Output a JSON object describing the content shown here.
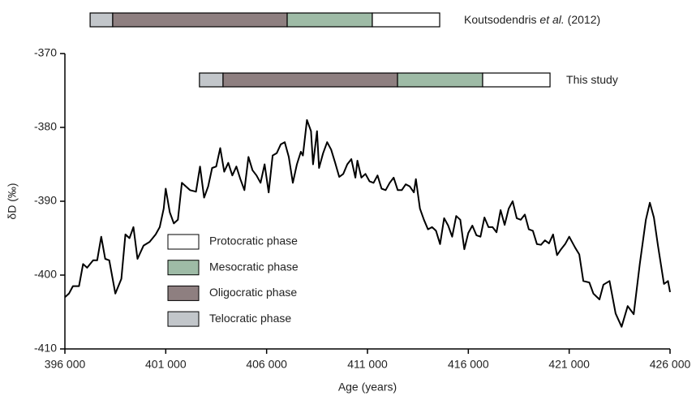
{
  "chart_data": {
    "type": "line",
    "y_label": "δD (‰)",
    "x_label": "Age (years)",
    "xlim": [
      396000,
      426000
    ],
    "xticks": [
      {
        "value": 396000,
        "label": "396 000"
      },
      {
        "value": 401000,
        "label": "401 000"
      },
      {
        "value": 406000,
        "label": "406 000"
      },
      {
        "value": 411000,
        "label": "411 000"
      },
      {
        "value": 416000,
        "label": "416 000"
      },
      {
        "value": 421000,
        "label": "421 000"
      },
      {
        "value": 426000,
        "label": "426 000"
      }
    ],
    "ylim": [
      -410,
      -370
    ],
    "yticks": [
      -410,
      -400,
      -390,
      -380,
      -370
    ],
    "series": [
      {
        "color": "#000000",
        "x": [
          396000,
          396200,
          396400,
          396700,
          396900,
          397100,
          397400,
          397600,
          397800,
          398000,
          398200,
          398500,
          398800,
          399000,
          399200,
          399400,
          399600,
          399900,
          400200,
          400500,
          400700,
          400900,
          401000,
          401200,
          401400,
          401600,
          401800,
          402000,
          402200,
          402500,
          402700,
          402900,
          403100,
          403300,
          403500,
          403700,
          403900,
          404100,
          404300,
          404500,
          404700,
          404900,
          405100,
          405300,
          405500,
          405700,
          405900,
          406100,
          406300,
          406500,
          406700,
          406900,
          407100,
          407300,
          407500,
          407700,
          407800,
          408000,
          408200,
          408300,
          408500,
          408600,
          408800,
          409000,
          409200,
          409400,
          409600,
          409800,
          410000,
          410200,
          410400,
          410500,
          410700,
          410900,
          411100,
          411300,
          411500,
          411700,
          411900,
          412100,
          412300,
          412500,
          412700,
          412900,
          413100,
          413300,
          413400,
          413600,
          413800,
          414000,
          414200,
          414400,
          414600,
          414800,
          415000,
          415200,
          415400,
          415600,
          415800,
          416000,
          416200,
          416400,
          416600,
          416800,
          417000,
          417200,
          417400,
          417600,
          417800,
          418000,
          418200,
          418400,
          418600,
          418800,
          419000,
          419200,
          419400,
          419600,
          419800,
          420000,
          420200,
          420400,
          420600,
          420800,
          421000,
          421300,
          421500,
          421700,
          422000,
          422200,
          422500,
          422700,
          423000,
          423300,
          423600,
          423900,
          424200,
          424500,
          424800,
          425000,
          425200,
          425400,
          425700,
          425900,
          426000
        ],
        "values": [
          -403,
          -402.5,
          -401.5,
          -401.5,
          -398.5,
          -399,
          -398,
          -398,
          -394.8,
          -397.8,
          -398,
          -402.5,
          -400.5,
          -394.5,
          -395,
          -393.5,
          -397.8,
          -396,
          -395.5,
          -394.5,
          -393.5,
          -391,
          -388.3,
          -391.5,
          -393,
          -392.5,
          -387.5,
          -388,
          -388.5,
          -388.7,
          -385.3,
          -389.5,
          -388,
          -385.5,
          -385.3,
          -382.8,
          -386,
          -384.8,
          -386.5,
          -385.3,
          -387,
          -388.5,
          -384,
          -385.8,
          -386.5,
          -387.5,
          -385,
          -388.8,
          -383.8,
          -383.5,
          -382.3,
          -382,
          -384,
          -387.5,
          -385,
          -383.3,
          -383.8,
          -379,
          -380.5,
          -385,
          -380.5,
          -385.5,
          -383.5,
          -382,
          -383,
          -384.8,
          -386.7,
          -386.3,
          -385,
          -384.3,
          -386.8,
          -384.5,
          -386.8,
          -386.3,
          -387.3,
          -387.5,
          -386.5,
          -388.3,
          -388.5,
          -387.5,
          -386.8,
          -388.5,
          -388.5,
          -387.7,
          -388,
          -388.8,
          -387,
          -391,
          -392.5,
          -393.8,
          -393.5,
          -394,
          -395.8,
          -392.3,
          -393.3,
          -394.8,
          -392,
          -392.5,
          -396.5,
          -394.3,
          -393.3,
          -394.6,
          -394.8,
          -392.2,
          -393.5,
          -393.5,
          -394.2,
          -391.2,
          -393.2,
          -391,
          -390,
          -392.3,
          -392.5,
          -391.8,
          -393.8,
          -394,
          -395.8,
          -395.9,
          -395.3,
          -395.7,
          -394.5,
          -397.3,
          -396.5,
          -395.8,
          -394.8,
          -396.3,
          -397.2,
          -400.8,
          -401,
          -402.5,
          -403.3,
          -401.3,
          -400.8,
          -405.2,
          -407,
          -404.2,
          -405.3,
          -398.5,
          -392.5,
          -390.2,
          -392.2,
          -396,
          -401.2,
          -400.8,
          -402.3
        ]
      }
    ],
    "phase_bars": [
      {
        "label": [
          "Koutsodendris ",
          "et al.",
          " (2012)"
        ],
        "bounds": [
          397250,
          398370,
          407020,
          411240,
          414580
        ]
      },
      {
        "label": [
          "This study"
        ],
        "bounds": [
          402670,
          403840,
          412490,
          416710,
          420050
        ]
      }
    ],
    "legend": [
      {
        "name": "Protocratic phase",
        "color": "#ffffff"
      },
      {
        "name": "Mesocratic phase",
        "color": "#9ebba6"
      },
      {
        "name": "Oligocratic phase",
        "color": "#8e7f80"
      },
      {
        "name": "Telocratic phase",
        "color": "#c2c6ca"
      }
    ]
  }
}
